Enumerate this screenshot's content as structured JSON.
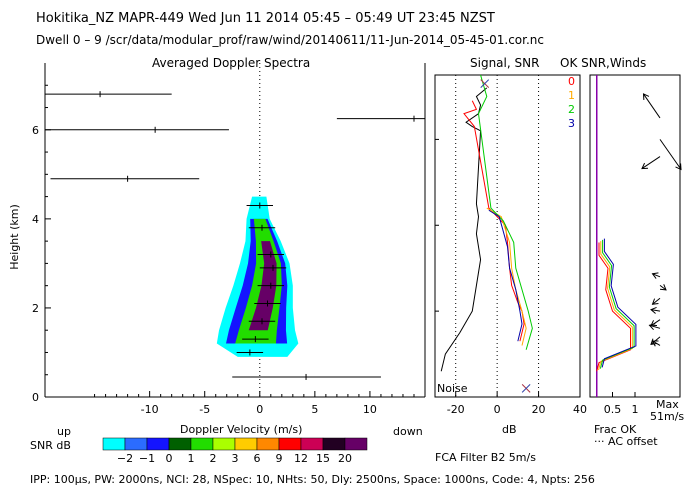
{
  "header": {
    "line1": "Hokitika_NZ  MAPR-449  Wed Jun 11 2014 05:45 – 05:49 UT 23:45 NZST",
    "line2": "Dwell  0 –  9    /scr/data/modular_prof/raw/wind/20140611/11-Jun-2014_05-45-01.cor.nc"
  },
  "footer": {
    "params": "IPP: 100μs,  PW: 2000ns,  NCI:  28,  NSpec: 10,  NHts: 50,  Dly: 2500ns,  Space: 1000ns,  Code: 4,  Npts: 256",
    "fca": "FCA Filter B2  5m/s"
  },
  "chart_data": [
    {
      "type": "heatmap",
      "title": "Averaged Doppler Spectra",
      "xlabel": "Doppler Velocity (m/s)",
      "ylabel": "Height (km)",
      "xlim": [
        -19.5,
        15
      ],
      "ylim": [
        0,
        7.5
      ],
      "xticks": [
        -10,
        -5,
        0,
        5,
        10
      ],
      "yticks": [
        0,
        2,
        4,
        6
      ],
      "left_note": "up",
      "right_note": "down",
      "colorbar": {
        "label": "SNR dB",
        "ticks": [
          "−2",
          "−1",
          "0",
          "1",
          "2",
          "3",
          "6",
          "9",
          "12",
          "15",
          "20"
        ],
        "colors": [
          "#00ffff",
          "#2b6cff",
          "#1414ff",
          "#006000",
          "#22dd00",
          "#aaff00",
          "#ffcc00",
          "#ff8800",
          "#ff0000",
          "#cc0055",
          "#220022",
          "#660066"
        ]
      },
      "level_colors": [
        "#00ffff",
        "#1414ff",
        "#22dd00",
        "#660066"
      ],
      "core_profile": [
        {
          "h": 1.0,
          "v": -0.9
        },
        {
          "h": 1.3,
          "v": -0.4
        },
        {
          "h": 1.7,
          "v": 0.2
        },
        {
          "h": 2.1,
          "v": 0.7
        },
        {
          "h": 2.5,
          "v": 1.0
        },
        {
          "h": 2.9,
          "v": 1.2
        },
        {
          "h": 3.2,
          "v": 1.0
        },
        {
          "h": 3.8,
          "v": 0.2
        },
        {
          "h": 4.3,
          "v": 0.0
        }
      ],
      "spectrum_outline": [
        {
          "h": 0.9,
          "vmin": -2.0,
          "vmax": 2.5
        },
        {
          "h": 1.2,
          "vmin": -3.9,
          "vmax": 3.5
        },
        {
          "h": 1.5,
          "vmin": -3.7,
          "vmax": 3.2
        },
        {
          "h": 2.0,
          "vmin": -3.1,
          "vmax": 3.0
        },
        {
          "h": 2.5,
          "vmin": -2.4,
          "vmax": 3.0
        },
        {
          "h": 3.0,
          "vmin": -1.8,
          "vmax": 2.7
        },
        {
          "h": 3.5,
          "vmin": -1.3,
          "vmax": 1.9
        },
        {
          "h": 4.0,
          "vmin": -1.2,
          "vmax": 0.9
        },
        {
          "h": 4.5,
          "vmin": -0.7,
          "vmax": 0.6
        }
      ],
      "sparse_spectra": [
        {
          "h": 6.8,
          "v": -14.5,
          "vmin": -19.5,
          "vmax": -8
        },
        {
          "h": 6.0,
          "v": -9.5,
          "vmin": -19.5,
          "vmax": -2.8
        },
        {
          "h": 4.9,
          "v": -12,
          "vmin": -19,
          "vmax": -5.5
        },
        {
          "h": 6.25,
          "v": 14,
          "vmin": 7,
          "vmax": 15
        },
        {
          "h": 0.45,
          "v": 4.2,
          "vmin": -2.5,
          "vmax": 11
        }
      ]
    },
    {
      "type": "line",
      "title": "Signal, SNR",
      "xlabel": "dB",
      "xlim": [
        -30,
        40
      ],
      "ylim": [
        0,
        7.5
      ],
      "xticks": [
        -20,
        0,
        20,
        40
      ],
      "noise_label": "Noise",
      "series": [
        {
          "name": "noise",
          "color": "#000000",
          "points": [
            [
              -5,
              7.2
            ],
            [
              -10,
              7.0
            ],
            [
              -8,
              6.8
            ],
            [
              -9,
              6.6
            ],
            [
              -15,
              6.4
            ],
            [
              -12,
              6.3
            ],
            [
              -8,
              6.2
            ],
            [
              -10,
              4.5
            ],
            [
              -9,
              4.2
            ],
            [
              -10,
              3.8
            ],
            [
              -8,
              3.2
            ],
            [
              -10,
              2.6
            ],
            [
              -12,
              2.0
            ],
            [
              -18,
              1.5
            ],
            [
              -25,
              1.0
            ],
            [
              -27,
              0.6
            ]
          ]
        },
        {
          "name": "signal-0",
          "color": "#ff0000",
          "points": [
            [
              -12,
              6.9
            ],
            [
              -10,
              6.7
            ],
            [
              -16,
              6.6
            ],
            [
              -11,
              6.3
            ],
            [
              -4,
              4.4
            ],
            [
              0,
              4.2
            ],
            [
              4,
              4.0
            ],
            [
              5,
              3.6
            ],
            [
              6,
              3.0
            ],
            [
              7,
              2.6
            ],
            [
              10,
              2.2
            ],
            [
              12,
              2.0
            ],
            [
              13,
              1.7
            ],
            [
              11,
              1.3
            ]
          ]
        },
        {
          "name": "signal-1",
          "color": "#ffaa00",
          "points": [
            [
              -5,
              4.4
            ],
            [
              2,
              4.2
            ],
            [
              6,
              3.6
            ],
            [
              7,
              3.0
            ],
            [
              9,
              2.5
            ],
            [
              12,
              2.0
            ],
            [
              14,
              1.6
            ],
            [
              12,
              1.2
            ]
          ]
        },
        {
          "name": "signal-2",
          "color": "#00cc00",
          "points": [
            [
              -8,
              7.5
            ],
            [
              -5,
              7.0
            ],
            [
              -9,
              6.6
            ],
            [
              -3,
              4.4
            ],
            [
              3,
              4.1
            ],
            [
              8,
              3.6
            ],
            [
              9,
              3.0
            ],
            [
              12,
              2.5
            ],
            [
              15,
              2.0
            ],
            [
              17,
              1.6
            ],
            [
              14,
              1.1
            ]
          ]
        },
        {
          "name": "signal-3",
          "color": "#0000aa",
          "points": [
            [
              -4,
              4.35
            ],
            [
              1,
              4.2
            ],
            [
              5,
              3.5
            ],
            [
              6,
              3.0
            ],
            [
              9,
              2.5
            ],
            [
              11,
              2.0
            ],
            [
              12,
              1.7
            ],
            [
              10,
              1.3
            ]
          ]
        }
      ]
    },
    {
      "type": "line",
      "title": "OK SNR,Winds",
      "xlabel": "Frac OK",
      "xlim": [
        0,
        2
      ],
      "ylim": [
        0,
        7.5
      ],
      "xticks": [
        0.5,
        1
      ],
      "tick_labels": [
        "0.5",
        "1"
      ],
      "legend": [
        "0",
        "1",
        "2",
        "3"
      ],
      "legend_colors": [
        "#ff0000",
        "#ffaa00",
        "#00cc00",
        "#0000aa"
      ],
      "offset_note": "··· AC offset",
      "max_label": "Max",
      "max_value": "51m/s",
      "wind_barbs": [
        {
          "h": 6.5,
          "dx": -0.55,
          "dy": 0.8
        },
        {
          "h": 6.0,
          "dx": 0.7,
          "dy": -1.0
        },
        {
          "h": 5.6,
          "dx": -0.6,
          "dy": -0.4
        },
        {
          "h": 2.8,
          "dx": -0.25,
          "dy": 0.1
        },
        {
          "h": 2.6,
          "dx": 0.2,
          "dy": -0.15
        },
        {
          "h": 2.3,
          "dx": -0.25,
          "dy": -0.2
        },
        {
          "h": 2.0,
          "dx": -0.3,
          "dy": 0.05
        },
        {
          "h": 1.8,
          "dx": -0.3,
          "dy": -0.2
        },
        {
          "h": 1.6,
          "dx": -0.35,
          "dy": 0.1
        },
        {
          "h": 1.4,
          "dx": -0.3,
          "dy": -0.25
        },
        {
          "h": 1.2,
          "dx": -0.25,
          "dy": 0.15
        }
      ]
    }
  ]
}
